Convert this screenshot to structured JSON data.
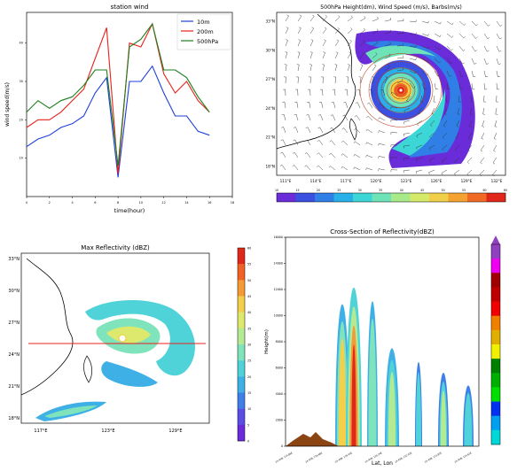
{
  "chart_data": [
    {
      "type": "line",
      "title": "station wind",
      "xlabel": "time(hour)",
      "ylabel": "wind speed(m/s)",
      "x": [
        0,
        1,
        2,
        3,
        4,
        5,
        6,
        7,
        8,
        9,
        10,
        11,
        12,
        13,
        14,
        15,
        16,
        17,
        18
      ],
      "x_ticks": [
        "0",
        "2",
        "4",
        "6",
        "8",
        "10",
        "12",
        "14",
        "16",
        "18"
      ],
      "y_ticks": [
        "10",
        "20",
        "30",
        "40"
      ],
      "ylim": [
        0,
        48
      ],
      "legend_position": "top-right",
      "colors": {
        "10m": "#1f3fd8",
        "200m": "#e8211b",
        "500hPa": "#1d7f1d"
      },
      "series": [
        {
          "name": "10m",
          "values": [
            13,
            15,
            16,
            18,
            19,
            21,
            27,
            31,
            5,
            30,
            30,
            34,
            27,
            21,
            21,
            17,
            16,
            null,
            null
          ]
        },
        {
          "name": "200m",
          "values": [
            18,
            20,
            20,
            22,
            25,
            28,
            36,
            44,
            6,
            40,
            39,
            45,
            32,
            27,
            30,
            25,
            22,
            null,
            null
          ]
        },
        {
          "name": "500hPa",
          "values": [
            22,
            25,
            23,
            25,
            26,
            29,
            33,
            33,
            8,
            39,
            41,
            45,
            33,
            33,
            31,
            26,
            22,
            null,
            null
          ]
        }
      ]
    },
    {
      "type": "heatmap",
      "title": "500hPa Height(dm), Wind Speed (m/s), Barbs(m/s)",
      "x_ticks": [
        "111°E",
        "114°E",
        "117°E",
        "120°E",
        "123°E",
        "126°E",
        "129°E",
        "132°E"
      ],
      "y_ticks": [
        "33°N",
        "30°N",
        "27°N",
        "24°N",
        "21°N",
        "18°N"
      ],
      "colorbar_ticks": [
        "10",
        "15",
        "20",
        "25",
        "30",
        "35",
        "40",
        "45",
        "50",
        "55",
        "60",
        "65"
      ],
      "colors": {
        "low": "#4b2cd6",
        "mid": "#28d2d2",
        "high": "#e8301c",
        "contour": "#c03a18"
      }
    },
    {
      "type": "heatmap",
      "title": "Max Reflectivity (dBZ)",
      "x_ticks": [
        "117°E",
        "123°E",
        "129°E"
      ],
      "y_ticks": [
        "33°N",
        "30°N",
        "27°N",
        "24°N",
        "21°N",
        "18°N"
      ],
      "colorbar_ticks": [
        "0",
        "5",
        "10",
        "15",
        "20",
        "25",
        "30",
        "35",
        "40",
        "45",
        "50",
        "55",
        "60"
      ],
      "colors": {
        "section_line": "#e8211b"
      }
    },
    {
      "type": "heatmap",
      "title": "Cross-Section of Reflectivity(dBZ)",
      "xlabel": "Lat, Lon",
      "ylabel": "Height(m)",
      "y_ticks": [
        "0",
        "2000",
        "4000",
        "6000",
        "8000",
        "10000",
        "12000",
        "14000",
        "16000"
      ],
      "x_ticks": [
        "24.45N, 114.86E",
        "24.45N, 116.66E",
        "24.45N, 118.45E",
        "24.45N, 120.24E",
        "24.45N, 122.03E",
        "24.45N, 123.82E",
        "24.45N, 125.61E"
      ],
      "colors": {
        "terrain": "#8b4513"
      }
    }
  ]
}
